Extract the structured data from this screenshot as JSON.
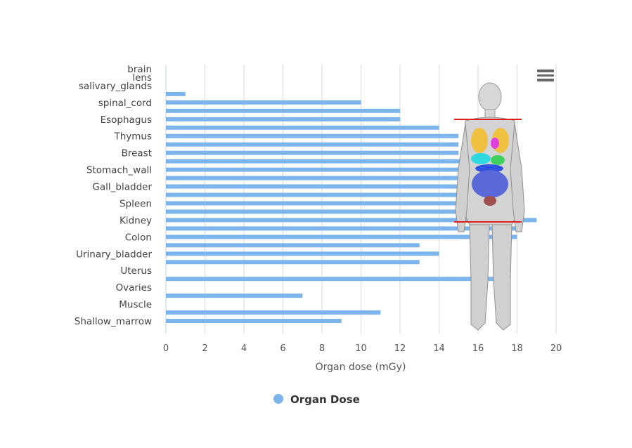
{
  "chart_data": {
    "type": "bar",
    "orientation": "horizontal",
    "title": "",
    "xlabel": "Organ dose (mGy)",
    "ylabel": "",
    "xlim": [
      0,
      20
    ],
    "x_ticks": [
      0,
      2,
      4,
      6,
      8,
      10,
      12,
      14,
      16,
      18,
      20
    ],
    "grid": true,
    "legend_position": "bottom-center",
    "categories": [
      "brain",
      "lens",
      "salivary_glands",
      "",
      "spinal_cord",
      "",
      "Esophagus",
      "",
      "Thymus",
      "",
      "Breast",
      "",
      "Stomach_wall",
      "",
      "Gall_bladder",
      "",
      "Spleen",
      "",
      "Kidney",
      "",
      "Colon",
      "",
      "Urinary_bladder",
      "",
      "Uterus",
      "",
      "Ovaries",
      "",
      "Muscle",
      "",
      "Shallow_marrow",
      ""
    ],
    "series": [
      {
        "name": "Organ Dose",
        "color": "#7cb5ec",
        "values": [
          0,
          0,
          0,
          1,
          10,
          12,
          12,
          14,
          15,
          15,
          15,
          18,
          18,
          18,
          18,
          18,
          18,
          18,
          19,
          18,
          18,
          13,
          14,
          13,
          0,
          17,
          0,
          7,
          0,
          11,
          9,
          0
        ]
      }
    ],
    "overlay": "anatomical-phantom-figure"
  },
  "icons": {
    "menu": "hamburger-menu-icon"
  }
}
